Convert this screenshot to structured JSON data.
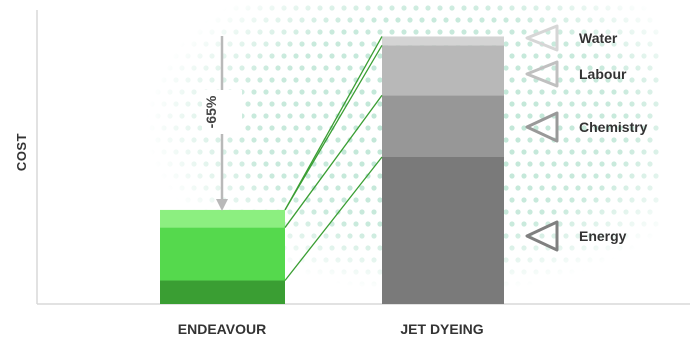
{
  "chart_data": {
    "type": "bar",
    "stacked": true,
    "title": "",
    "xlabel": "",
    "ylabel": "COST",
    "categories": [
      "ENDEAVOUR",
      "JET DYEING"
    ],
    "ylim": [
      0,
      100
    ],
    "series": [
      {
        "name": "Energy",
        "values": [
          8,
          50
        ],
        "colors": [
          "#3a9e33",
          "#7a7a7a"
        ]
      },
      {
        "name": "Chemistry",
        "values": [
          18,
          21
        ],
        "colors": [
          "#55d94d",
          "#979797"
        ]
      },
      {
        "name": "Labour",
        "values": [
          6,
          17
        ],
        "colors": [
          "#8cef80",
          "#b8b8b8"
        ]
      },
      {
        "name": "Water",
        "values": [
          0,
          3
        ],
        "colors": [
          "#a8f59c",
          "#d4d4d4"
        ]
      }
    ],
    "annotation": {
      "text": "-65%"
    },
    "grid": false,
    "legend": "right"
  },
  "colors": {
    "axis": "#d8d8d8",
    "dots": "#bfe6d6",
    "connector": "#3a9e33",
    "arrow": "#b9b9b9",
    "label": "#333333"
  }
}
